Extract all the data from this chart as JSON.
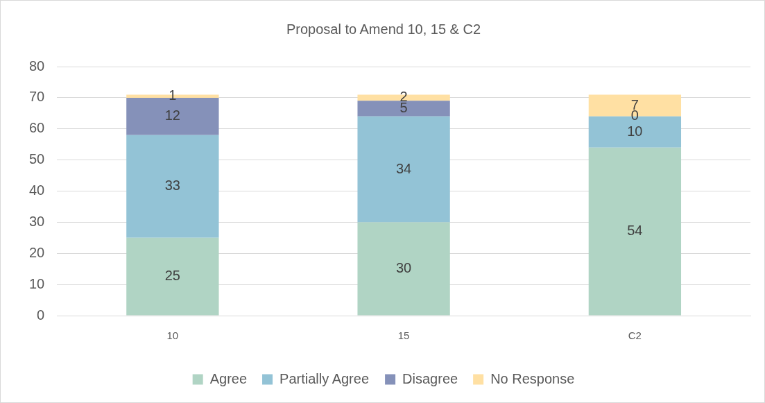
{
  "chart_data": {
    "type": "bar",
    "title": "Proposal to Amend 10, 15 & C2",
    "categories": [
      "10",
      "15",
      "C2"
    ],
    "series": [
      {
        "name": "Agree",
        "color": "#b0d4c4",
        "values": [
          25,
          30,
          54
        ]
      },
      {
        "name": "Partially Agree",
        "color": "#93c3d6",
        "values": [
          33,
          34,
          10
        ]
      },
      {
        "name": "Disagree",
        "color": "#8591b9",
        "values": [
          12,
          5,
          0
        ]
      },
      {
        "name": "No Response",
        "color": "#ffe0a3",
        "values": [
          1,
          2,
          7
        ]
      }
    ],
    "stacked": true,
    "ylim": [
      0,
      80
    ],
    "yticks": [
      0,
      10,
      20,
      30,
      40,
      50,
      60,
      70,
      80
    ],
    "grid": "y",
    "legend": "bottom",
    "data_labels": true
  }
}
